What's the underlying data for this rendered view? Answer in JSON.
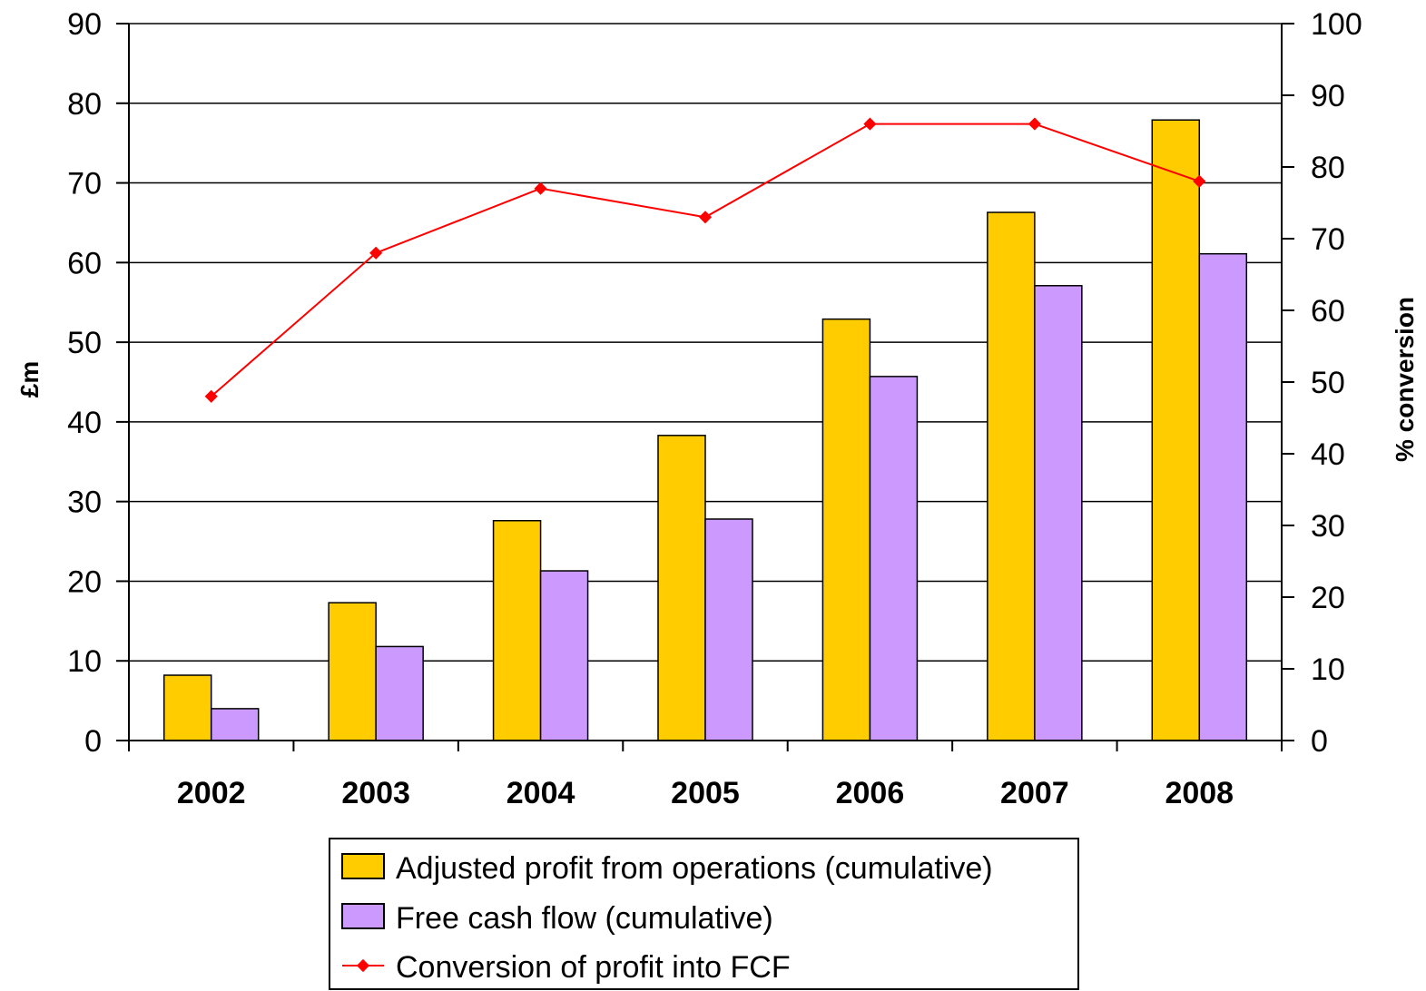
{
  "chart_data": {
    "type": "bar",
    "categories": [
      "2002",
      "2003",
      "2004",
      "2005",
      "2006",
      "2007",
      "2008"
    ],
    "series": [
      {
        "name": "Adjusted profit from operations (cumulative)",
        "kind": "bar",
        "axis": "left",
        "color": "#FFCC00",
        "values": [
          8.2,
          17.3,
          27.6,
          38.3,
          52.9,
          66.3,
          77.9
        ]
      },
      {
        "name": "Free cash flow (cumulative)",
        "kind": "bar",
        "axis": "left",
        "color": "#CC99FF",
        "values": [
          4.0,
          11.8,
          21.3,
          27.8,
          45.7,
          57.1,
          61.1
        ]
      },
      {
        "name": "Conversion of profit into FCF",
        "kind": "line",
        "axis": "right",
        "color": "#FF0000",
        "values": [
          48,
          68,
          77,
          73,
          86,
          86,
          78
        ]
      }
    ],
    "ylabel": "£m",
    "ylim": [
      0,
      90
    ],
    "yticks": [
      "0",
      "10",
      "20",
      "30",
      "40",
      "50",
      "60",
      "70",
      "80",
      "90"
    ],
    "y2label": "% conversion",
    "y2lim": [
      0,
      100
    ],
    "y2ticks": [
      "0",
      "10",
      "20",
      "30",
      "40",
      "50",
      "60",
      "70",
      "80",
      "90",
      "100"
    ],
    "grid": true,
    "legend_position": "bottom"
  }
}
